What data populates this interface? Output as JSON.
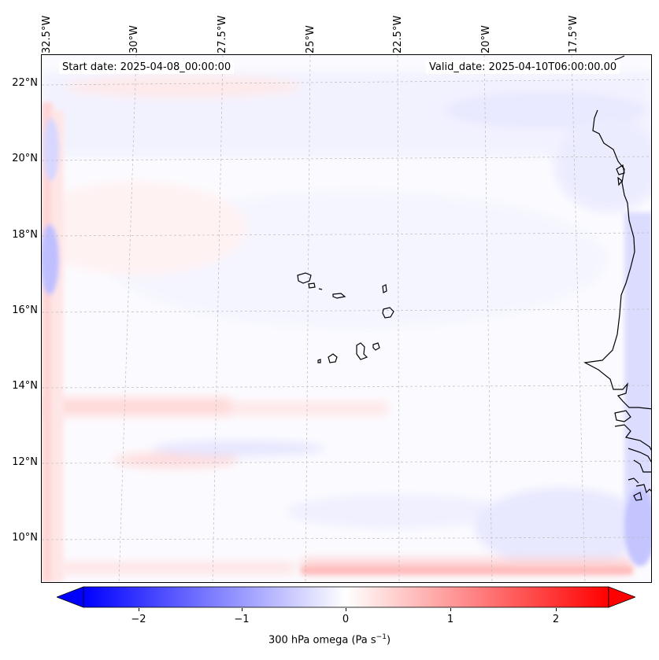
{
  "header": {
    "start_date": "Start date: 2025-04-08_00:00:00",
    "valid_date": "Valid_date: 2025-04-10T06:00:00.00"
  },
  "axes": {
    "lon_labels": [
      "32.5°W",
      "30°W",
      "27.5°W",
      "25°W",
      "22.5°W",
      "20°W",
      "17.5°W"
    ],
    "lat_labels": [
      "22°N",
      "20°N",
      "18°N",
      "16°N",
      "14°N",
      "12°N",
      "10°N"
    ]
  },
  "colorbar": {
    "label": "300 hPa omega (Pa s",
    "label_sup": "−1",
    "label_end": ")",
    "ticks": [
      "−2",
      "−1",
      "0",
      "1",
      "2"
    ],
    "min": -2.6,
    "max": 2.6,
    "colormap": [
      "#0000ff",
      "#ffffff",
      "#ff0000"
    ]
  },
  "map": {
    "variable": "omega",
    "level": "300 hPa",
    "grid": true,
    "coastlines": true,
    "colors": {
      "rising": "#6f6fff",
      "sinking": "#ff7a7a",
      "grid": "#bbbbbb"
    }
  }
}
